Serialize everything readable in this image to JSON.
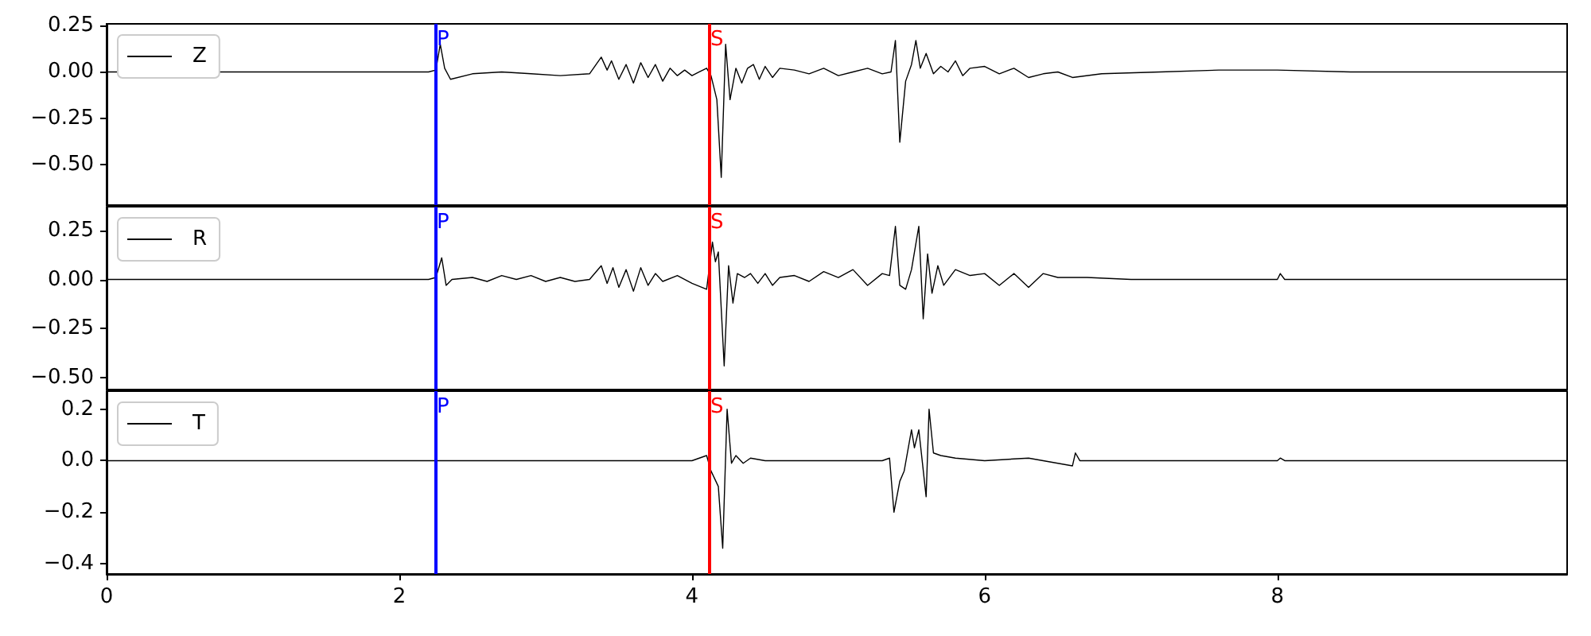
{
  "chart_data": [
    {
      "type": "line",
      "xlim": [
        0,
        9.98
      ],
      "xticks": [
        0,
        2,
        4,
        6,
        8
      ],
      "ylim": [
        -0.72,
        0.26
      ],
      "yticks": [
        {
          "value": 0.25,
          "label": "0.25"
        },
        {
          "value": 0,
          "label": "0.00"
        },
        {
          "value": -0.25,
          "label": "−0.25"
        },
        {
          "value": -0.5,
          "label": "−0.50"
        }
      ],
      "tick_labels": "y",
      "grid": false,
      "legend": "top left",
      "marker": "none",
      "line_style": "solid",
      "ref_lines": [
        {
          "axis": "x",
          "value": 2.25,
          "label": "P",
          "color": "#0000ff"
        },
        {
          "axis": "x",
          "value": 4.12,
          "label": "S",
          "color": "#ff0000"
        }
      ],
      "series": [
        {
          "name": "Z",
          "color": "#000000",
          "x": [
            0,
            2.2,
            2.25,
            2.28,
            2.31,
            2.35,
            2.5,
            2.7,
            2.9,
            3.1,
            3.3,
            3.38,
            3.42,
            3.45,
            3.5,
            3.55,
            3.6,
            3.65,
            3.7,
            3.75,
            3.8,
            3.85,
            3.9,
            3.95,
            4.0,
            4.05,
            4.1,
            4.13,
            4.17,
            4.2,
            4.23,
            4.26,
            4.3,
            4.34,
            4.38,
            4.42,
            4.46,
            4.5,
            4.55,
            4.6,
            4.7,
            4.8,
            4.9,
            5.0,
            5.1,
            5.2,
            5.3,
            5.36,
            5.39,
            5.42,
            5.46,
            5.5,
            5.53,
            5.56,
            5.6,
            5.65,
            5.7,
            5.75,
            5.8,
            5.85,
            5.9,
            6.0,
            6.1,
            6.2,
            6.3,
            6.4,
            6.5,
            6.6,
            6.8,
            7.2,
            7.6,
            8.0,
            8.5,
            9.0,
            9.98
          ],
          "values": [
            0,
            0,
            0.01,
            0.15,
            0.02,
            -0.04,
            -0.01,
            0,
            -0.01,
            -0.02,
            -0.01,
            0.08,
            0.01,
            0.06,
            -0.04,
            0.04,
            -0.06,
            0.05,
            -0.03,
            0.04,
            -0.05,
            0.02,
            -0.02,
            0.01,
            -0.02,
            0,
            0.02,
            -0.02,
            -0.15,
            -0.57,
            0.15,
            -0.15,
            0.02,
            -0.06,
            0.02,
            0.04,
            -0.04,
            0.03,
            -0.03,
            0.02,
            0.01,
            -0.01,
            0.02,
            -0.02,
            0,
            0.02,
            -0.01,
            0,
            0.17,
            -0.38,
            -0.05,
            0.04,
            0.17,
            0.02,
            0.1,
            -0.01,
            0.03,
            0,
            0.06,
            -0.02,
            0.02,
            0.03,
            -0.01,
            0.02,
            -0.03,
            -0.01,
            0,
            -0.03,
            -0.01,
            0,
            0.01,
            0.01,
            0,
            0,
            0
          ]
        }
      ]
    },
    {
      "type": "line",
      "xlim": [
        0,
        9.98
      ],
      "xticks": [
        0,
        2,
        4,
        6,
        8
      ],
      "ylim": [
        -0.56,
        0.37
      ],
      "yticks": [
        {
          "value": 0.25,
          "label": "0.25"
        },
        {
          "value": 0,
          "label": "0.00"
        },
        {
          "value": -0.25,
          "label": "−0.25"
        },
        {
          "value": -0.5,
          "label": "−0.50"
        }
      ],
      "tick_labels": "y",
      "grid": false,
      "legend": "top left",
      "marker": "none",
      "line_style": "solid",
      "ref_lines": [
        {
          "axis": "x",
          "value": 2.25,
          "label": "P",
          "color": "#0000ff"
        },
        {
          "axis": "x",
          "value": 4.12,
          "label": "S",
          "color": "#ff0000"
        }
      ],
      "series": [
        {
          "name": "R",
          "color": "#000000",
          "x": [
            0,
            2.2,
            2.25,
            2.29,
            2.32,
            2.36,
            2.5,
            2.6,
            2.7,
            2.8,
            2.9,
            3.0,
            3.1,
            3.2,
            3.3,
            3.38,
            3.42,
            3.46,
            3.5,
            3.55,
            3.6,
            3.65,
            3.7,
            3.75,
            3.8,
            3.9,
            4.0,
            4.1,
            4.14,
            4.16,
            4.18,
            4.22,
            4.25,
            4.28,
            4.31,
            4.36,
            4.4,
            4.45,
            4.5,
            4.55,
            4.6,
            4.7,
            4.8,
            4.9,
            5.0,
            5.1,
            5.2,
            5.3,
            5.35,
            5.39,
            5.42,
            5.46,
            5.5,
            5.55,
            5.58,
            5.61,
            5.64,
            5.68,
            5.72,
            5.8,
            5.9,
            6.0,
            6.1,
            6.2,
            6.3,
            6.4,
            6.5,
            6.7,
            7.0,
            7.5,
            8.0,
            8.02,
            8.05,
            9.0,
            9.98
          ],
          "values": [
            0,
            0,
            0.01,
            0.11,
            -0.03,
            0,
            0.01,
            -0.01,
            0.02,
            0,
            0.02,
            -0.01,
            0.01,
            -0.01,
            0,
            0.07,
            -0.02,
            0.06,
            -0.04,
            0.05,
            -0.06,
            0.06,
            -0.03,
            0.03,
            -0.01,
            0.02,
            -0.02,
            -0.05,
            0.19,
            0.09,
            0.14,
            -0.44,
            0.07,
            -0.12,
            0.03,
            0.01,
            0.03,
            -0.02,
            0.03,
            -0.03,
            0.01,
            0.02,
            -0.01,
            0.04,
            0.01,
            0.05,
            -0.03,
            0.03,
            0.02,
            0.27,
            -0.03,
            -0.05,
            0.05,
            0.27,
            -0.2,
            0.13,
            -0.07,
            0.07,
            -0.03,
            0.05,
            0.02,
            0.03,
            -0.03,
            0.03,
            -0.04,
            0.03,
            0.01,
            0.01,
            0,
            0,
            0,
            0.03,
            0,
            0,
            0
          ]
        }
      ]
    },
    {
      "type": "line",
      "xlim": [
        0,
        9.98
      ],
      "xticks": [
        0,
        2,
        4,
        6,
        8
      ],
      "ylim": [
        -0.44,
        0.27
      ],
      "yticks": [
        {
          "value": 0.2,
          "label": "0.2"
        },
        {
          "value": 0,
          "label": "0.0"
        },
        {
          "value": -0.2,
          "label": "−0.2"
        },
        {
          "value": -0.4,
          "label": "−0.4"
        }
      ],
      "grid": false,
      "legend": "top left",
      "marker": "none",
      "line_style": "solid",
      "ref_lines": [
        {
          "axis": "x",
          "value": 2.25,
          "label": "P",
          "color": "#0000ff"
        },
        {
          "axis": "x",
          "value": 4.12,
          "label": "S",
          "color": "#ff0000"
        }
      ],
      "series": [
        {
          "name": "T",
          "color": "#000000",
          "x": [
            0,
            3.0,
            4.0,
            4.1,
            4.13,
            4.18,
            4.21,
            4.24,
            4.27,
            4.3,
            4.35,
            4.4,
            4.5,
            4.7,
            5.0,
            5.3,
            5.35,
            5.38,
            5.42,
            5.45,
            5.5,
            5.52,
            5.55,
            5.6,
            5.62,
            5.65,
            5.7,
            5.8,
            6.0,
            6.3,
            6.6,
            6.62,
            6.65,
            7.0,
            8.0,
            8.02,
            8.05,
            9.98
          ],
          "values": [
            0,
            0,
            0,
            0.02,
            -0.04,
            -0.1,
            -0.34,
            0.2,
            -0.01,
            0.02,
            -0.01,
            0.01,
            0,
            0,
            0,
            0,
            0.01,
            -0.2,
            -0.08,
            -0.04,
            0.12,
            0.05,
            0.12,
            -0.14,
            0.2,
            0.03,
            0.02,
            0.01,
            0,
            0.01,
            -0.02,
            0.03,
            0,
            0,
            0,
            0.01,
            0,
            0
          ]
        }
      ]
    }
  ]
}
